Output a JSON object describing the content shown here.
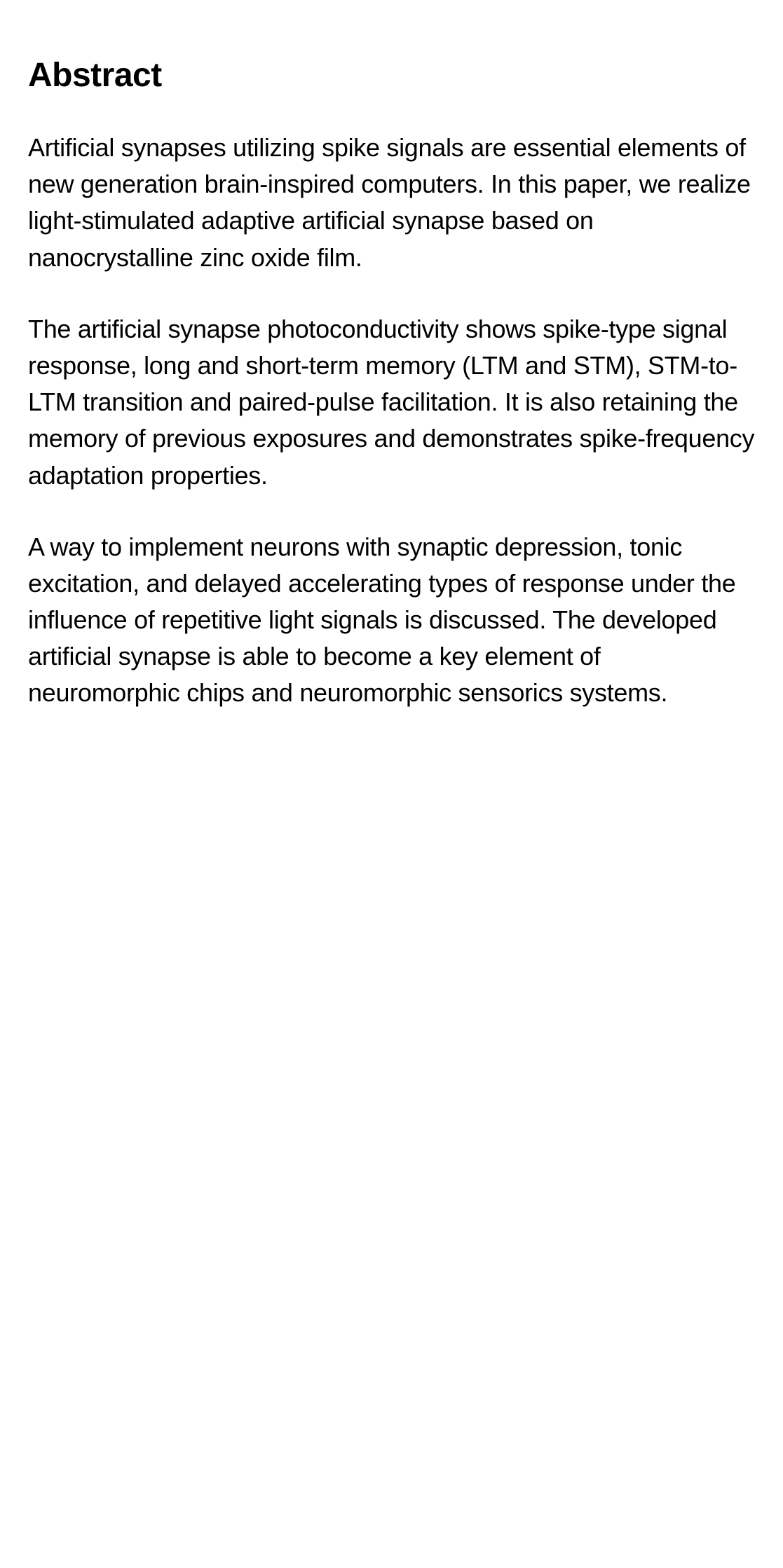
{
  "heading": "Abstract",
  "paragraphs": [
    "Artificial synapses utilizing spike signals are essential elements of new generation brain-inspired computers. In this paper, we realize light-stimulated adaptive artificial synapse based on nanocrystalline zinc oxide film.",
    "The artificial synapse photoconductivity shows spike-type signal response, long and short-term memory (LTM and STM), STM-to-LTM transition and paired-pulse facilitation. It is also retaining the memory of previous exposures and demonstrates spike-frequency adaptation properties.",
    "A way to implement neurons with synaptic depression, tonic excitation, and delayed accelerating types of response under the influence of repetitive light signals is discussed. The developed artificial synapse is able to become a key element of neuromorphic chips and neuromorphic sensorics systems."
  ],
  "styling": {
    "background_color": "#ffffff",
    "text_color": "#000000",
    "heading_fontsize": 48,
    "heading_fontweight": 700,
    "body_fontsize": 36,
    "body_fontweight": 300,
    "line_height": 1.45,
    "paragraph_spacing": 50
  }
}
